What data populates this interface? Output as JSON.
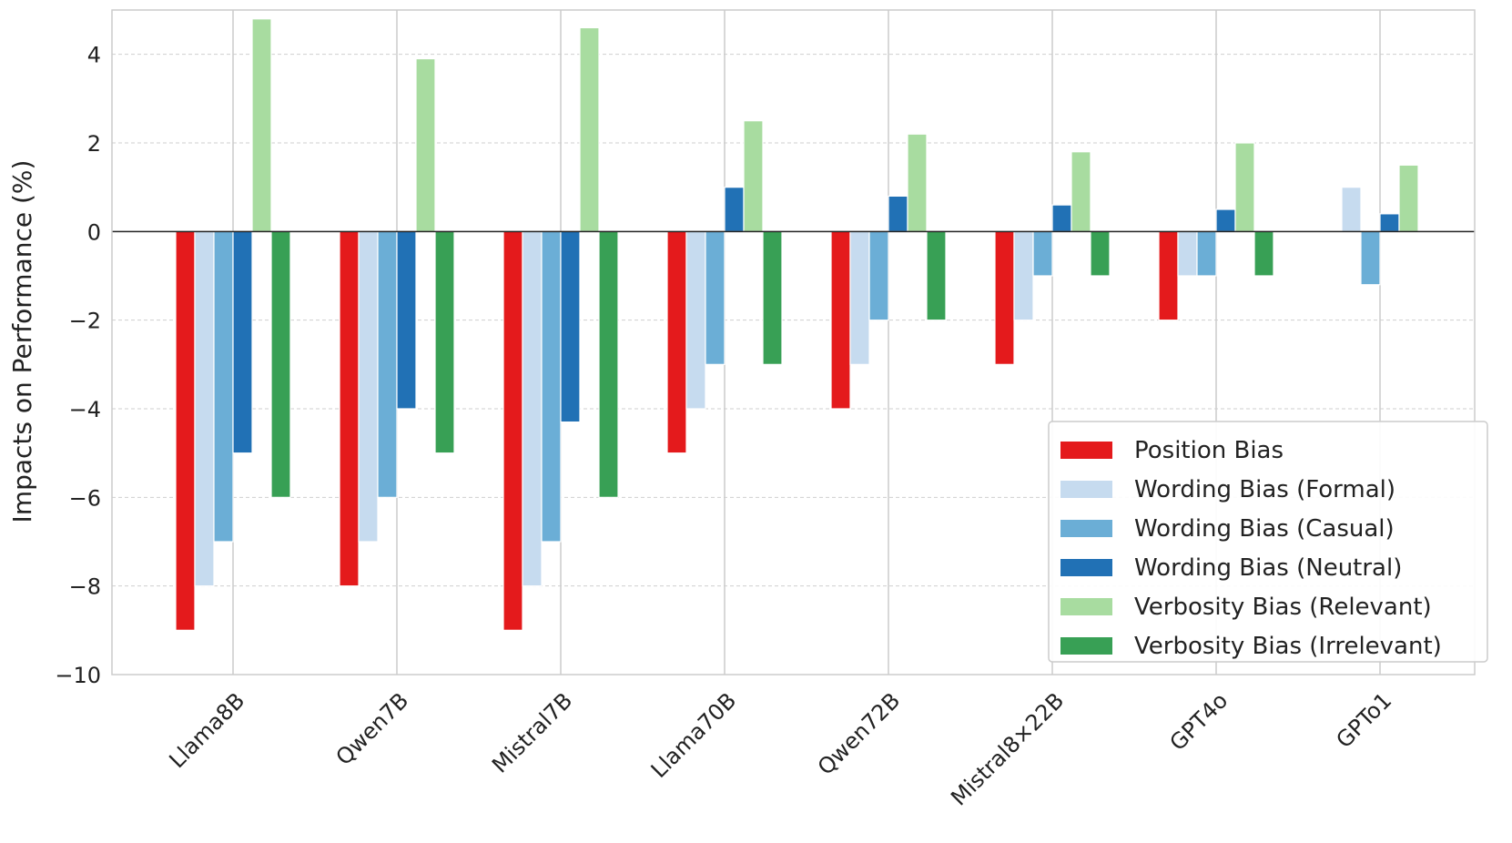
{
  "chart_data": {
    "type": "bar",
    "title": "",
    "xlabel": "",
    "ylabel": "Impacts on Performance (%)",
    "ylim": [
      -10,
      5
    ],
    "yticks": [
      -10,
      -8,
      -6,
      -4,
      -2,
      0,
      2,
      4
    ],
    "grid": true,
    "legend_position": "lower-right",
    "categories": [
      "Llama8B",
      "Qwen7B",
      "Mistral7B",
      "Llama70B",
      "Qwen72B",
      "Mistral8×22B",
      "GPT4o",
      "GPTo1"
    ],
    "series": [
      {
        "name": "Position Bias",
        "color": "#e41a1c",
        "values": [
          -9,
          -8,
          -9,
          -5,
          -4,
          -3,
          -2,
          0
        ]
      },
      {
        "name": "Wording Bias (Formal)",
        "color": "#c6dbef",
        "values": [
          -8,
          -7,
          -8,
          -4,
          -3,
          -2,
          -1,
          1.0
        ]
      },
      {
        "name": "Wording Bias (Casual)",
        "color": "#6baed6",
        "values": [
          -7,
          -6,
          -7,
          -3,
          -2,
          -1,
          -1,
          -1.2
        ]
      },
      {
        "name": "Wording Bias (Neutral)",
        "color": "#2171b5",
        "values": [
          -5,
          -4,
          -4.3,
          1.0,
          0.8,
          0.6,
          0.5,
          0.4
        ]
      },
      {
        "name": "Verbosity Bias (Relevant)",
        "color": "#a8dca0",
        "values": [
          4.8,
          3.9,
          4.6,
          2.5,
          2.2,
          1.8,
          2.0,
          1.5
        ]
      },
      {
        "name": "Verbosity Bias (Irrelevant)",
        "color": "#38a055",
        "values": [
          -6,
          -5,
          -6,
          -3,
          -2,
          -1,
          -1,
          0
        ]
      }
    ]
  }
}
